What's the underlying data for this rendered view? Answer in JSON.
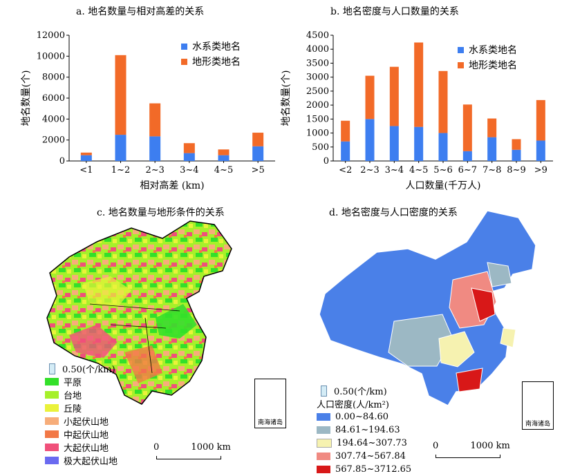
{
  "chart_data": [
    {
      "type": "bar",
      "stacked": true,
      "title": "a. 地名数量与相对高差的关系",
      "xlabel": "相对高差 (km)",
      "ylabel": "地名数量(个)",
      "ylim": [
        0,
        12000
      ],
      "yticks": [
        0,
        2000,
        4000,
        6000,
        8000,
        10000,
        12000
      ],
      "categories": [
        "<1",
        "1~2",
        "2~3",
        "3~4",
        "4~5",
        ">5"
      ],
      "series": [
        {
          "name": "水系类地名",
          "color": "#3d7ef0",
          "values": [
            550,
            2500,
            2350,
            750,
            550,
            1400
          ]
        },
        {
          "name": "地形类地名",
          "color": "#f26a28",
          "values": [
            250,
            7600,
            3150,
            950,
            550,
            1300
          ]
        }
      ],
      "legend": "top-right",
      "grid": false
    },
    {
      "type": "bar",
      "stacked": true,
      "title": "b. 地名密度与人口数量的关系",
      "xlabel": "人口数量(千万人)",
      "ylabel": "地名数量(个)",
      "ylim": [
        0,
        4500
      ],
      "yticks": [
        0,
        500,
        1000,
        1500,
        2000,
        2500,
        3000,
        3500,
        4000,
        4500
      ],
      "categories": [
        "<2",
        "2~3",
        "3~4",
        "4~5",
        "5~6",
        "6~7",
        "7~8",
        "8~9",
        ">9"
      ],
      "series": [
        {
          "name": "水系类地名",
          "color": "#3d7ef0",
          "values": [
            700,
            1500,
            1250,
            1220,
            1000,
            350,
            850,
            400,
            730
          ]
        },
        {
          "name": "地形类地名",
          "color": "#f26a28",
          "values": [
            740,
            1550,
            2120,
            3020,
            2220,
            1670,
            670,
            380,
            1450
          ]
        }
      ],
      "legend": "top-right",
      "grid": false
    }
  ],
  "maps": {
    "c": {
      "title": "c. 地名数量与地形条件的关系",
      "bar_legend": "0.50(个/km)",
      "legend": [
        {
          "label": "平原",
          "color": "#33e02a"
        },
        {
          "label": "台地",
          "color": "#a6f02a"
        },
        {
          "label": "丘陵",
          "color": "#eaf23a"
        },
        {
          "label": "小起伏山地",
          "color": "#f7ad7a"
        },
        {
          "label": "中起伏山地",
          "color": "#f27846"
        },
        {
          "label": "大起伏山地",
          "color": "#f0507a"
        },
        {
          "label": "极大起伏山地",
          "color": "#6a6af0"
        }
      ],
      "scale_zero": "0",
      "scale_label": "1000 km",
      "inset_label": "南海诸岛"
    },
    "d": {
      "title": "d. 地名密度与人口密度的关系",
      "bar_legend": "0.50(个/km)",
      "legend_title": "人口密度(人/km²)",
      "legend": [
        {
          "label": "0.00~84.60",
          "color": "#4a80e8"
        },
        {
          "label": "84.61~194.63",
          "color": "#9cb8c4"
        },
        {
          "label": "194.64~307.73",
          "color": "#f6f2b0"
        },
        {
          "label": "307.74~567.84",
          "color": "#f08a82"
        },
        {
          "label": "567.85~3712.65",
          "color": "#d81818"
        }
      ],
      "scale_zero": "0",
      "scale_label": "1000 km",
      "inset_label": "南海诸岛"
    }
  }
}
